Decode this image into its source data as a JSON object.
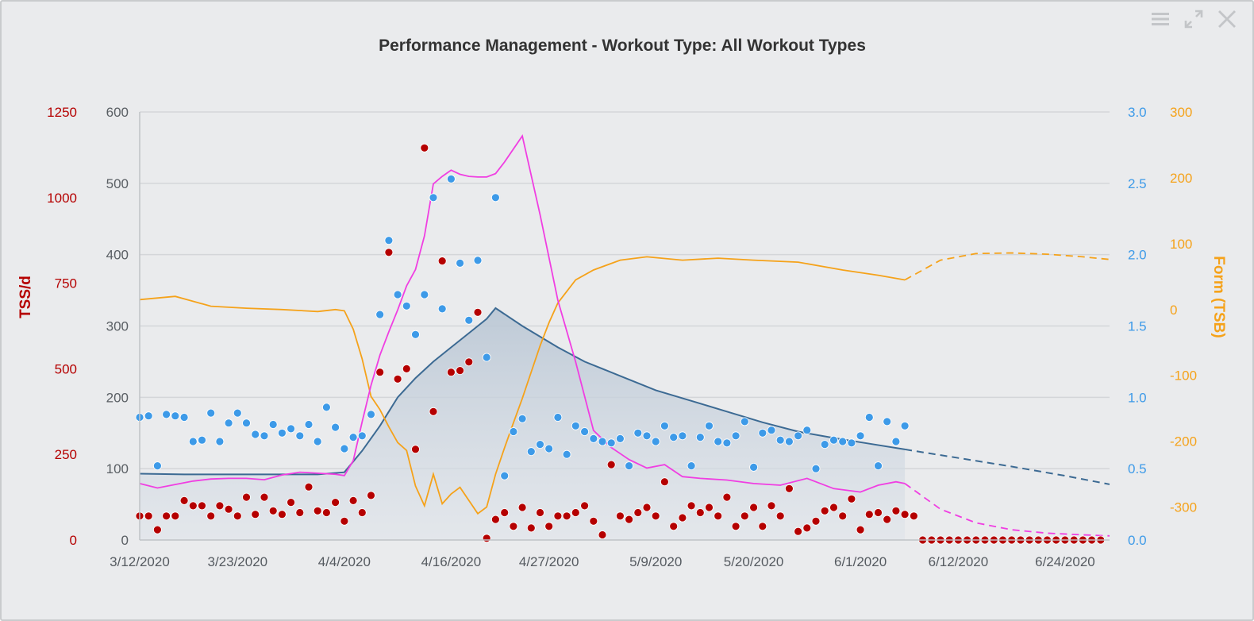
{
  "colors": {
    "tss": "#b50000",
    "ctl_axis": "#5a5f64",
    "if": "#3d9ae8",
    "tsb": "#f5a21a",
    "fitness": "#3c6a93",
    "fatigue": "#f03ee2",
    "grid": "#d4d6d9",
    "background": "#eaebed",
    "title": "#333333"
  },
  "controls": {
    "menu_icon": "hamburger-menu-icon",
    "expand_icon": "expand-icon",
    "close_icon": "close-icon"
  },
  "chart_data": {
    "type": "line",
    "title": "Performance Management - Workout Type: All Workout Types",
    "x_type": "date",
    "x_range": [
      "2020-03-12",
      "2020-06-29"
    ],
    "x_ticks": [
      "3/12/2020",
      "3/23/2020",
      "4/4/2020",
      "4/16/2020",
      "4/27/2020",
      "5/9/2020",
      "5/20/2020",
      "6/1/2020",
      "6/12/2020",
      "6/24/2020"
    ],
    "grid": true,
    "axes": {
      "tss": {
        "label": "TSS/d",
        "side": "left",
        "range": [
          0,
          1250
        ],
        "ticks": [
          "0",
          "250",
          "500",
          "750",
          "1000",
          "1250"
        ]
      },
      "ctl": {
        "label": "",
        "side": "left",
        "range": [
          0,
          600
        ],
        "ticks": [
          "0",
          "100",
          "200",
          "300",
          "400",
          "500",
          "600"
        ]
      },
      "if": {
        "label": "",
        "side": "right",
        "range": [
          0,
          3
        ],
        "ticks": [
          "0.0",
          "0.5",
          "1.0",
          "1.5",
          "2.0",
          "2.5",
          "3.0"
        ]
      },
      "tsb": {
        "label": "Form (TSB)",
        "side": "right",
        "range": [
          -350,
          300
        ],
        "ticks": [
          "-300",
          "-200",
          "-100",
          "0",
          "100",
          "200",
          "300"
        ]
      }
    },
    "series": [
      {
        "axis": "ctl",
        "type": "area",
        "x": [
          "2020-03-12",
          "2020-03-17",
          "2020-03-22",
          "2020-03-27",
          "2020-04-01",
          "2020-04-04",
          "2020-04-06",
          "2020-04-08",
          "2020-04-10",
          "2020-04-12",
          "2020-04-14",
          "2020-04-16",
          "2020-04-18",
          "2020-04-20",
          "2020-04-21",
          "2020-04-24",
          "2020-04-28",
          "2020-05-01",
          "2020-05-05",
          "2020-05-09",
          "2020-05-13",
          "2020-05-17",
          "2020-05-21",
          "2020-05-25",
          "2020-05-29",
          "2020-06-02",
          "2020-06-06"
        ],
        "values": [
          93,
          92,
          92,
          92,
          92,
          95,
          125,
          160,
          200,
          227,
          250,
          270,
          290,
          310,
          325,
          300,
          270,
          250,
          230,
          210,
          195,
          180,
          165,
          152,
          143,
          135,
          127
        ],
        "future_x": [
          "2020-06-06",
          "2020-06-12",
          "2020-06-18",
          "2020-06-24",
          "2020-06-29"
        ],
        "future_values": [
          127,
          115,
          103,
          90,
          78
        ]
      },
      {
        "axis": "tss",
        "type": "line",
        "x": [
          "2020-03-12",
          "2020-03-14",
          "2020-03-16",
          "2020-03-18",
          "2020-03-20",
          "2020-03-22",
          "2020-03-24",
          "2020-03-26",
          "2020-03-28",
          "2020-03-30",
          "2020-04-01",
          "2020-04-03",
          "2020-04-04",
          "2020-04-05",
          "2020-04-06",
          "2020-04-07",
          "2020-04-08",
          "2020-04-09",
          "2020-04-10",
          "2020-04-11",
          "2020-04-12",
          "2020-04-13",
          "2020-04-14",
          "2020-04-15",
          "2020-04-16",
          "2020-04-17",
          "2020-04-18",
          "2020-04-19",
          "2020-04-20",
          "2020-04-21",
          "2020-04-22",
          "2020-04-24",
          "2020-04-26",
          "2020-04-28",
          "2020-04-30",
          "2020-05-02",
          "2020-05-04",
          "2020-05-06",
          "2020-05-08",
          "2020-05-10",
          "2020-05-12",
          "2020-05-14",
          "2020-05-17",
          "2020-05-20",
          "2020-05-23",
          "2020-05-26",
          "2020-05-29",
          "2020-06-01",
          "2020-06-03",
          "2020-06-05",
          "2020-06-06"
        ],
        "values": [
          165,
          152,
          162,
          172,
          178,
          180,
          180,
          176,
          190,
          198,
          195,
          192,
          188,
          232,
          345,
          452,
          540,
          608,
          672,
          742,
          790,
          888,
          1040,
          1062,
          1080,
          1068,
          1062,
          1060,
          1060,
          1070,
          1104,
          1180,
          950,
          700,
          520,
          320,
          270,
          235,
          210,
          220,
          185,
          180,
          175,
          165,
          160,
          180,
          150,
          140,
          160,
          170,
          165
        ],
        "future_x": [
          "2020-06-06",
          "2020-06-10",
          "2020-06-14",
          "2020-06-18",
          "2020-06-22",
          "2020-06-26",
          "2020-06-29"
        ],
        "future_values": [
          165,
          90,
          50,
          30,
          20,
          15,
          12
        ]
      },
      {
        "axis": "tsb",
        "type": "line",
        "x": [
          "2020-03-12",
          "2020-03-16",
          "2020-03-20",
          "2020-03-24",
          "2020-03-28",
          "2020-04-01",
          "2020-04-03",
          "2020-04-04",
          "2020-04-05",
          "2020-04-06",
          "2020-04-07",
          "2020-04-08",
          "2020-04-09",
          "2020-04-10",
          "2020-04-11",
          "2020-04-12",
          "2020-04-13",
          "2020-04-14",
          "2020-04-15",
          "2020-04-16",
          "2020-04-17",
          "2020-04-18",
          "2020-04-19",
          "2020-04-20",
          "2020-04-21",
          "2020-04-22",
          "2020-04-23",
          "2020-04-24",
          "2020-04-25",
          "2020-04-26",
          "2020-04-27",
          "2020-04-28",
          "2020-04-30",
          "2020-05-02",
          "2020-05-05",
          "2020-05-08",
          "2020-05-12",
          "2020-05-16",
          "2020-05-20",
          "2020-05-25",
          "2020-05-30",
          "2020-06-03",
          "2020-06-06"
        ],
        "values": [
          15,
          20,
          5,
          2,
          0,
          -3,
          0,
          -2,
          -30,
          -75,
          -132,
          -152,
          -178,
          -202,
          -214,
          -268,
          -298,
          -250,
          -295,
          -280,
          -270,
          -290,
          -310,
          -300,
          -250,
          -210,
          -172,
          -135,
          -95,
          -55,
          -20,
          10,
          45,
          60,
          75,
          80,
          75,
          78,
          75,
          72,
          60,
          52,
          45
        ],
        "future_x": [
          "2020-06-06",
          "2020-06-10",
          "2020-06-14",
          "2020-06-18",
          "2020-06-22",
          "2020-06-26",
          "2020-06-29"
        ],
        "future_values": [
          45,
          75,
          85,
          86,
          84,
          80,
          76
        ]
      },
      {
        "axis": "tss",
        "type": "scatter",
        "x": [
          "2020-03-12",
          "2020-03-13",
          "2020-03-14",
          "2020-03-15",
          "2020-03-16",
          "2020-03-17",
          "2020-03-18",
          "2020-03-19",
          "2020-03-20",
          "2020-03-21",
          "2020-03-22",
          "2020-03-23",
          "2020-03-24",
          "2020-03-25",
          "2020-03-26",
          "2020-03-27",
          "2020-03-28",
          "2020-03-29",
          "2020-03-30",
          "2020-03-31",
          "2020-04-01",
          "2020-04-02",
          "2020-04-03",
          "2020-04-04",
          "2020-04-05",
          "2020-04-06",
          "2020-04-07",
          "2020-04-08",
          "2020-04-09",
          "2020-04-10",
          "2020-04-11",
          "2020-04-12",
          "2020-04-13",
          "2020-04-14",
          "2020-04-15",
          "2020-04-16",
          "2020-04-17",
          "2020-04-18",
          "2020-04-19",
          "2020-04-20",
          "2020-04-21",
          "2020-04-22",
          "2020-04-23",
          "2020-04-24",
          "2020-04-25",
          "2020-04-26",
          "2020-04-27",
          "2020-04-28",
          "2020-04-29",
          "2020-04-30",
          "2020-05-01",
          "2020-05-02",
          "2020-05-03",
          "2020-05-04",
          "2020-05-05",
          "2020-05-06",
          "2020-05-07",
          "2020-05-08",
          "2020-05-09",
          "2020-05-10",
          "2020-05-11",
          "2020-05-12",
          "2020-05-13",
          "2020-05-14",
          "2020-05-15",
          "2020-05-16",
          "2020-05-17",
          "2020-05-18",
          "2020-05-19",
          "2020-05-20",
          "2020-05-21",
          "2020-05-22",
          "2020-05-23",
          "2020-05-24",
          "2020-05-25",
          "2020-05-26",
          "2020-05-27",
          "2020-05-28",
          "2020-05-29",
          "2020-05-30",
          "2020-05-31",
          "2020-06-01",
          "2020-06-02",
          "2020-06-03",
          "2020-06-04",
          "2020-06-05",
          "2020-06-06",
          "2020-06-07",
          "2020-06-08",
          "2020-06-09",
          "2020-06-10",
          "2020-06-11",
          "2020-06-12",
          "2020-06-13",
          "2020-06-14",
          "2020-06-15",
          "2020-06-16",
          "2020-06-17",
          "2020-06-18",
          "2020-06-19",
          "2020-06-20",
          "2020-06-21",
          "2020-06-22",
          "2020-06-23",
          "2020-06-24",
          "2020-06-25",
          "2020-06-26",
          "2020-06-27",
          "2020-06-28"
        ],
        "values": [
          70,
          70,
          30,
          70,
          70,
          115,
          100,
          100,
          70,
          100,
          90,
          70,
          125,
          75,
          125,
          85,
          75,
          110,
          80,
          155,
          85,
          80,
          110,
          55,
          115,
          80,
          130,
          490,
          840,
          470,
          500,
          265,
          1145,
          375,
          815,
          490,
          495,
          520,
          665,
          5,
          60,
          80,
          40,
          95,
          35,
          80,
          40,
          70,
          70,
          80,
          100,
          55,
          15,
          220,
          70,
          60,
          80,
          95,
          70,
          170,
          40,
          65,
          100,
          80,
          95,
          70,
          125,
          40,
          70,
          95,
          40,
          100,
          70,
          150,
          25,
          35,
          55,
          85,
          95,
          70,
          120,
          30,
          75,
          80,
          60,
          85,
          75,
          70,
          0,
          0,
          0,
          0,
          0,
          0,
          0,
          0,
          0,
          0,
          0,
          0,
          0,
          0,
          0,
          0,
          0,
          0,
          0,
          0,
          0
        ]
      },
      {
        "axis": "if",
        "type": "scatter",
        "x": [
          "2020-03-12",
          "2020-03-13",
          "2020-03-14",
          "2020-03-15",
          "2020-03-16",
          "2020-03-17",
          "2020-03-18",
          "2020-03-19",
          "2020-03-20",
          "2020-03-21",
          "2020-03-22",
          "2020-03-23",
          "2020-03-24",
          "2020-03-25",
          "2020-03-26",
          "2020-03-27",
          "2020-03-28",
          "2020-03-29",
          "2020-03-30",
          "2020-03-31",
          "2020-04-01",
          "2020-04-02",
          "2020-04-03",
          "2020-04-04",
          "2020-04-05",
          "2020-04-06",
          "2020-04-07",
          "2020-04-08",
          "2020-04-09",
          "2020-04-10",
          "2020-04-11",
          "2020-04-12",
          "2020-04-13",
          "2020-04-14",
          "2020-04-15",
          "2020-04-16",
          "2020-04-17",
          "2020-04-18",
          "2020-04-19",
          "2020-04-20",
          "2020-04-21",
          "2020-04-22",
          "2020-04-23",
          "2020-04-24",
          "2020-04-25",
          "2020-04-26",
          "2020-04-27",
          "2020-04-28",
          "2020-04-29",
          "2020-04-30",
          "2020-05-01",
          "2020-05-02",
          "2020-05-03",
          "2020-05-04",
          "2020-05-05",
          "2020-05-06",
          "2020-05-07",
          "2020-05-08",
          "2020-05-09",
          "2020-05-10",
          "2020-05-11",
          "2020-05-12",
          "2020-05-13",
          "2020-05-14",
          "2020-05-15",
          "2020-05-16",
          "2020-05-17",
          "2020-05-18",
          "2020-05-19",
          "2020-05-20",
          "2020-05-21",
          "2020-05-22",
          "2020-05-23",
          "2020-05-24",
          "2020-05-25",
          "2020-05-26",
          "2020-05-27",
          "2020-05-28",
          "2020-05-29",
          "2020-05-30",
          "2020-05-31",
          "2020-06-01",
          "2020-06-02",
          "2020-06-03",
          "2020-06-04",
          "2020-06-05",
          "2020-06-06"
        ],
        "values": [
          0.86,
          0.87,
          0.52,
          0.88,
          0.87,
          0.86,
          0.69,
          0.7,
          0.89,
          0.69,
          0.82,
          0.89,
          0.82,
          0.74,
          0.73,
          0.81,
          0.75,
          0.78,
          0.73,
          0.81,
          0.69,
          0.93,
          0.79,
          0.64,
          0.72,
          0.73,
          0.88,
          1.58,
          2.1,
          1.72,
          1.64,
          1.44,
          1.72,
          2.4,
          1.62,
          2.53,
          1.94,
          1.54,
          1.96,
          1.28,
          2.4,
          0.45,
          0.76,
          0.85,
          0.62,
          0.67,
          0.64,
          0.86,
          0.6,
          0.8,
          0.76,
          0.71,
          0.69,
          0.68,
          0.71,
          0.52,
          0.75,
          0.73,
          0.69,
          0.8,
          0.72,
          0.73,
          0.52,
          0.72,
          0.8,
          0.69,
          0.68,
          0.73,
          0.83,
          0.51,
          0.75,
          0.77,
          0.7,
          0.69,
          0.73,
          0.77,
          0.5,
          0.67,
          0.7,
          0.69,
          0.68,
          0.73,
          0.86,
          0.52,
          0.83,
          0.69,
          0.8
        ]
      }
    ]
  }
}
